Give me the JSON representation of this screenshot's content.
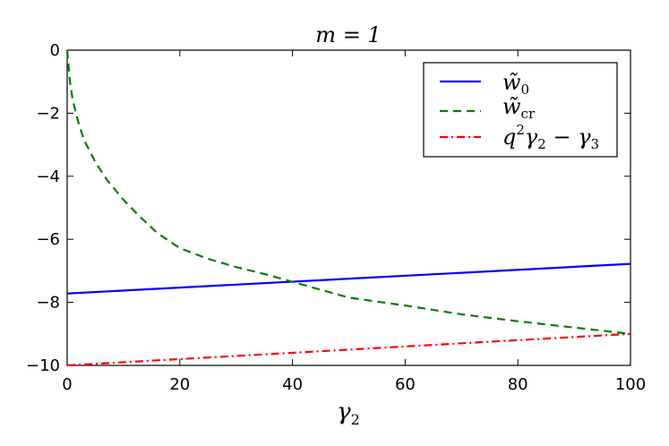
{
  "chart_data": {
    "type": "line",
    "title": "m = 1",
    "xlabel": "γ2",
    "ylabel": "",
    "xlim": [
      0,
      100
    ],
    "ylim": [
      -10,
      0
    ],
    "x_ticks": [
      0,
      20,
      40,
      60,
      80,
      100
    ],
    "y_ticks": [
      0,
      -2,
      -4,
      -6,
      -8,
      -10
    ],
    "x_tick_labels": [
      "0",
      "20",
      "40",
      "60",
      "80",
      "100"
    ],
    "y_tick_labels": [
      "0",
      "−2",
      "−4",
      "−6",
      "−8",
      "−10"
    ],
    "grid": false,
    "legend_position": "top-right",
    "series": [
      {
        "name": "w̃0",
        "color": "#0000ff",
        "style": "solid",
        "x": [
          0,
          100
        ],
        "y": [
          -7.72,
          -6.78
        ]
      },
      {
        "name": "w̃cr",
        "color": "#007f00",
        "style": "dashed",
        "x": [
          0,
          0.5,
          1,
          2,
          3,
          5,
          7,
          10,
          13,
          16,
          20,
          25,
          30,
          35,
          40,
          45,
          50,
          60,
          70,
          80,
          90,
          100
        ],
        "y": [
          0,
          -1.0,
          -1.6,
          -2.3,
          -2.85,
          -3.55,
          -4.1,
          -4.75,
          -5.3,
          -5.8,
          -6.28,
          -6.62,
          -6.88,
          -7.1,
          -7.35,
          -7.6,
          -7.85,
          -8.1,
          -8.38,
          -8.6,
          -8.8,
          -9.0
        ]
      },
      {
        "name": "q2γ2 − γ3",
        "color": "#ff0000",
        "style": "dashdot",
        "x": [
          0,
          100
        ],
        "y": [
          -10,
          -9.0
        ]
      }
    ]
  }
}
